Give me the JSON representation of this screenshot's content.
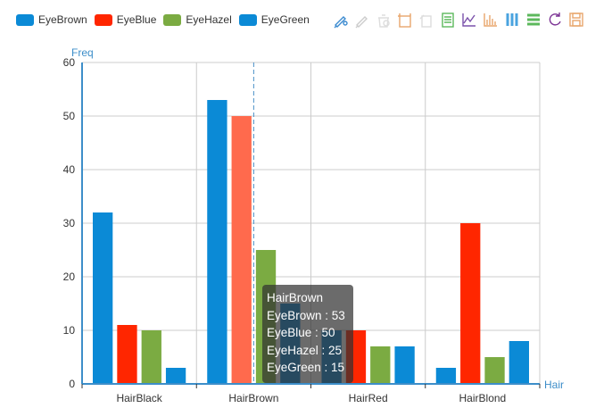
{
  "legend": [
    {
      "label": "EyeBrown",
      "color": "#0b8ad6"
    },
    {
      "label": "EyeBlue",
      "color": "#ff2600"
    },
    {
      "label": "EyeHazel",
      "color": "#7bab42"
    },
    {
      "label": "EyeGreen",
      "color": "#0b8ad6"
    }
  ],
  "toolbox": [
    {
      "icon": "data-zoom-icon",
      "color": "#3c8bd0"
    },
    {
      "icon": "data-zoom-reset-icon",
      "color": "#cccccc"
    },
    {
      "icon": "data-view-icon",
      "color": "#dddddd"
    },
    {
      "icon": "dataview-square-icon",
      "color": "#e8a66b"
    },
    {
      "icon": "mark-undo-icon",
      "color": "#dddddd"
    },
    {
      "icon": "data-view-list-icon",
      "color": "#5cb85c"
    },
    {
      "icon": "line-chart-icon",
      "color": "#7b52ab"
    },
    {
      "icon": "bar-chart-icon",
      "color": "#e8a66b"
    },
    {
      "icon": "stack-icon",
      "color": "#4aa3df"
    },
    {
      "icon": "tiled-icon",
      "color": "#5cb85c"
    },
    {
      "icon": "restore-icon",
      "color": "#7b3294"
    },
    {
      "icon": "save-image-icon",
      "color": "#e8a66b"
    }
  ],
  "tooltip": {
    "title": "HairBrown",
    "lines": [
      "EyeBrown : 53",
      "EyeBlue : 50",
      "EyeHazel : 25",
      "EyeGreen : 15"
    ]
  },
  "chart_data": {
    "type": "bar",
    "ylabel": "Freq",
    "xlabel": "Hair",
    "categories": [
      "HairBlack",
      "HairBrown",
      "HairRed",
      "HairBlond"
    ],
    "ylim": [
      0,
      60
    ],
    "yticks": [
      0,
      10,
      20,
      30,
      40,
      50,
      60
    ],
    "grid": true,
    "highlighted_category": "HairBrown",
    "series": [
      {
        "name": "EyeBrown",
        "values": [
          32,
          53,
          10,
          3
        ],
        "color": "#0b8ad6"
      },
      {
        "name": "EyeBlue",
        "values": [
          11,
          50,
          10,
          30
        ],
        "color": "#ff2600"
      },
      {
        "name": "EyeHazel",
        "values": [
          10,
          25,
          7,
          5
        ],
        "color": "#7bab42"
      },
      {
        "name": "EyeGreen",
        "values": [
          3,
          15,
          7,
          8
        ],
        "color": "#0b8ad6"
      }
    ]
  }
}
